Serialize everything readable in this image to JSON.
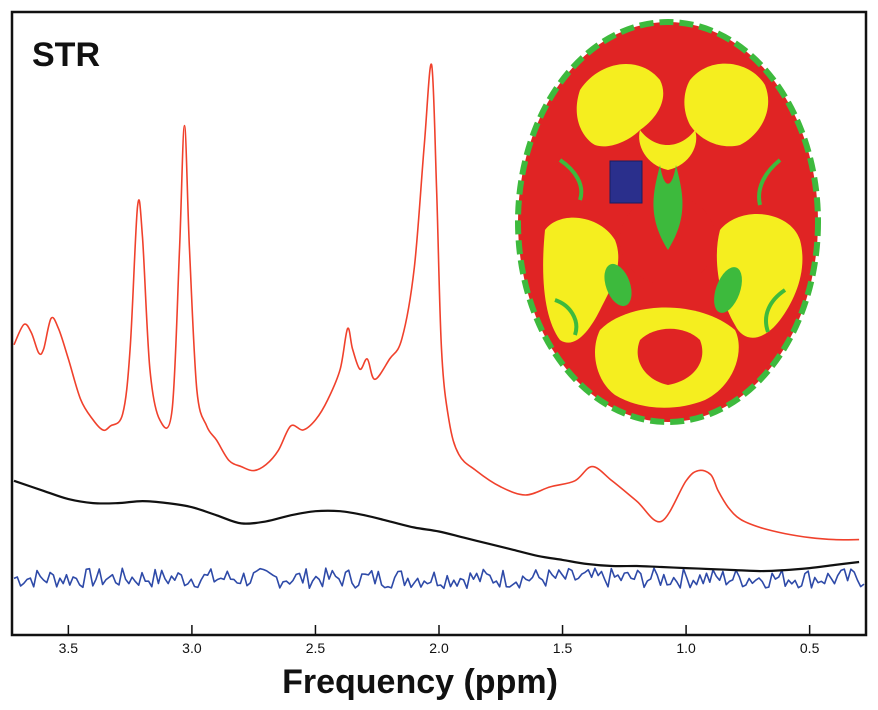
{
  "panel_label": "STR",
  "colors": {
    "spectrum": "#f0412c",
    "baseline": "#111111",
    "residual": "#2e4aa8",
    "brain_gray_matter": "#e02424",
    "brain_white_matter": "#f5ee1f",
    "brain_csf": "#3dba3d",
    "voxel": "#2a2f8c"
  },
  "chart_data": {
    "type": "line",
    "xlabel": "Frequency (ppm)",
    "ylabel": "",
    "x_reversed": true,
    "xlim": [
      3.72,
      0.28
    ],
    "x_ticks": [
      3.5,
      3.0,
      2.5,
      2.0,
      1.5,
      1.0,
      0.5
    ],
    "x_tick_labels": [
      "3.5",
      "3.0",
      "2.5",
      "2.0",
      "1.5",
      "1.0",
      "0.5"
    ],
    "grid": false,
    "series": [
      {
        "role": "spectrum",
        "x": [
          3.72,
          3.68,
          3.65,
          3.62,
          3.6,
          3.57,
          3.54,
          3.5,
          3.45,
          3.4,
          3.36,
          3.33,
          3.28,
          3.25,
          3.22,
          3.2,
          3.17,
          3.13,
          3.08,
          3.05,
          3.03,
          3.01,
          2.98,
          2.94,
          2.9,
          2.85,
          2.8,
          2.75,
          2.7,
          2.65,
          2.6,
          2.55,
          2.5,
          2.45,
          2.4,
          2.37,
          2.35,
          2.32,
          2.29,
          2.26,
          2.2,
          2.15,
          2.1,
          2.06,
          2.03,
          2.01,
          1.99,
          1.96,
          1.92,
          1.85,
          1.75,
          1.65,
          1.55,
          1.45,
          1.38,
          1.3,
          1.2,
          1.1,
          1.0,
          0.95,
          0.9,
          0.87,
          0.83,
          0.78,
          0.7,
          0.6,
          0.5,
          0.4,
          0.3
        ],
        "y": [
          0.12,
          0.22,
          0.18,
          0.08,
          0.1,
          0.25,
          0.2,
          0.05,
          -0.15,
          -0.25,
          -0.3,
          -0.28,
          -0.22,
          0.1,
          0.8,
          0.65,
          0.0,
          -0.25,
          -0.2,
          0.6,
          1.2,
          0.6,
          -0.1,
          -0.28,
          -0.35,
          -0.45,
          -0.48,
          -0.5,
          -0.47,
          -0.4,
          -0.28,
          -0.3,
          -0.25,
          -0.15,
          0.0,
          0.2,
          0.1,
          0.0,
          0.05,
          -0.05,
          0.05,
          0.15,
          0.5,
          1.1,
          1.5,
          0.9,
          0.1,
          -0.25,
          -0.42,
          -0.5,
          -0.58,
          -0.62,
          -0.58,
          -0.55,
          -0.48,
          -0.55,
          -0.65,
          -0.75,
          -0.55,
          -0.5,
          -0.52,
          -0.6,
          -0.68,
          -0.74,
          -0.78,
          -0.81,
          -0.83,
          -0.84,
          -0.84
        ]
      },
      {
        "role": "baseline",
        "x": [
          3.72,
          3.6,
          3.5,
          3.4,
          3.3,
          3.2,
          3.1,
          3.0,
          2.9,
          2.8,
          2.7,
          2.6,
          2.5,
          2.4,
          2.3,
          2.2,
          2.1,
          2.0,
          1.9,
          1.8,
          1.7,
          1.6,
          1.5,
          1.4,
          1.3,
          1.2,
          1.1,
          1.0,
          0.9,
          0.8,
          0.7,
          0.6,
          0.5,
          0.4,
          0.3
        ],
        "y": [
          -0.55,
          -0.6,
          -0.64,
          -0.66,
          -0.66,
          -0.65,
          -0.66,
          -0.68,
          -0.72,
          -0.76,
          -0.75,
          -0.72,
          -0.7,
          -0.7,
          -0.72,
          -0.75,
          -0.78,
          -0.8,
          -0.83,
          -0.86,
          -0.89,
          -0.92,
          -0.94,
          -0.96,
          -0.97,
          -0.97,
          -0.975,
          -0.98,
          -0.985,
          -0.99,
          -0.995,
          -0.99,
          -0.98,
          -0.965,
          -0.95
        ]
      },
      {
        "role": "residual",
        "x_start": 3.72,
        "x_end": 0.28,
        "points": 260,
        "mean": -1.03,
        "noise_amplitude": 0.05
      }
    ]
  },
  "inset": {
    "description_role": "segmented brain axial slice with voxel"
  }
}
